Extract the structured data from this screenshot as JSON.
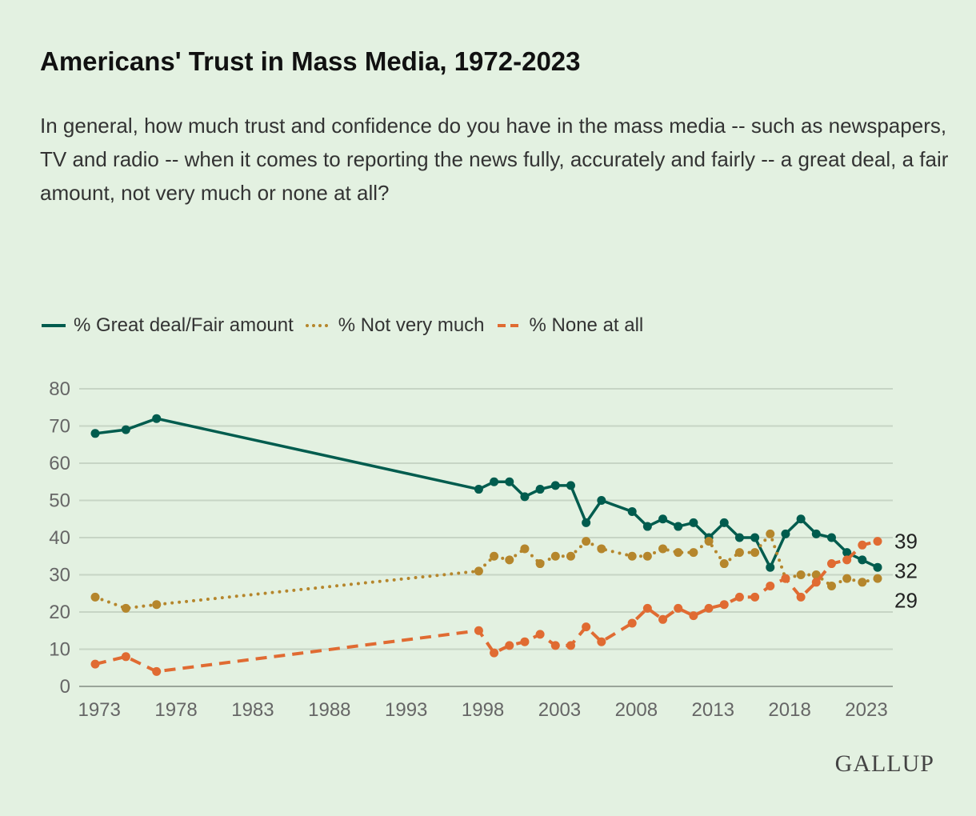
{
  "title": "Americans' Trust in Mass Media, 1972-2023",
  "subtitle": "In general, how much trust and confidence do you have in the mass media -- such as newspapers, TV and radio -- when it comes to reporting the news fully, accurately and fairly -- a great deal, a fair amount, not very much or none at all?",
  "logo": "GALLUP",
  "chart_data": {
    "type": "line",
    "title": "Americans' Trust in Mass Media, 1972-2023",
    "xlabel": "",
    "ylabel": "",
    "ylim": [
      0,
      80
    ],
    "yticks": [
      "0",
      "10",
      "20",
      "30",
      "40",
      "50",
      "60",
      "70",
      "80"
    ],
    "xticks": [
      "1973",
      "1978",
      "1983",
      "1988",
      "1993",
      "1998",
      "2003",
      "2008",
      "2013",
      "2018",
      "2023"
    ],
    "grid": true,
    "legend_position": "top-left",
    "x": [
      1972,
      1974,
      1976,
      1997,
      1998,
      1999,
      2000,
      2001,
      2002,
      2003,
      2004,
      2005,
      2007,
      2008,
      2009,
      2010,
      2011,
      2012,
      2013,
      2014,
      2015,
      2016,
      2017,
      2018,
      2019,
      2020,
      2021,
      2022,
      2023
    ],
    "series": [
      {
        "name": "% Great deal/Fair amount",
        "color": "#005c4e",
        "style": "solid",
        "end_label": "32",
        "values": [
          68,
          69,
          72,
          53,
          55,
          55,
          51,
          53,
          54,
          54,
          44,
          50,
          47,
          43,
          45,
          43,
          44,
          40,
          44,
          40,
          40,
          32,
          41,
          45,
          41,
          40,
          36,
          34,
          32
        ]
      },
      {
        "name": "% Not very much",
        "color": "#b5862c",
        "style": "dotted",
        "end_label": "29",
        "values": [
          24,
          21,
          22,
          31,
          35,
          34,
          37,
          33,
          35,
          35,
          39,
          37,
          35,
          35,
          37,
          36,
          36,
          39,
          33,
          36,
          36,
          41,
          29,
          30,
          30,
          27,
          29,
          28,
          29
        ]
      },
      {
        "name": "% None at all",
        "color": "#e06b32",
        "style": "dashed",
        "end_label": "39",
        "values": [
          6,
          8,
          4,
          15,
          9,
          11,
          12,
          14,
          11,
          11,
          16,
          12,
          17,
          21,
          18,
          21,
          19,
          21,
          22,
          24,
          24,
          27,
          29,
          24,
          28,
          33,
          34,
          38,
          39
        ]
      }
    ]
  }
}
